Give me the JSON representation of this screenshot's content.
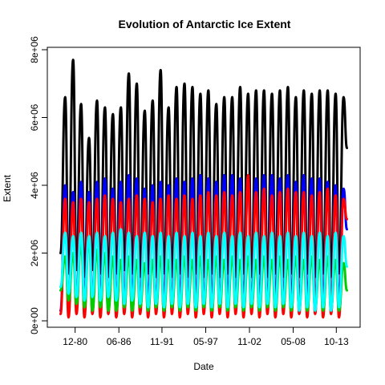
{
  "chart_data": {
    "type": "line",
    "title": "Evolution of Antarctic Ice Extent",
    "xlabel": "Date",
    "ylabel": "Extent",
    "xlim": [
      "1978-11",
      "2015-05"
    ],
    "ylim": [
      0,
      8000000
    ],
    "x_ticks": [
      {
        "date": "1980-12",
        "label": "12-80"
      },
      {
        "date": "1986-06",
        "label": "06-86"
      },
      {
        "date": "1991-11",
        "label": "11-91"
      },
      {
        "date": "1997-05",
        "label": "05-97"
      },
      {
        "date": "2002-11",
        "label": "11-02"
      },
      {
        "date": "2008-05",
        "label": "05-08"
      },
      {
        "date": "2013-10",
        "label": "10-13"
      }
    ],
    "y_ticks": [
      {
        "value": 0,
        "label": "0e+00"
      },
      {
        "value": 2000000,
        "label": "2e+06"
      },
      {
        "value": 4000000,
        "label": "4e+06"
      },
      {
        "value": 6000000,
        "label": "6e+06"
      },
      {
        "value": 8000000,
        "label": "8e+06"
      }
    ],
    "grid": false,
    "series": [
      {
        "color": "#000000",
        "x": [
          "1979-02",
          "1979-09",
          "1980-02",
          "1980-09",
          "1981-02",
          "1981-09",
          "1982-02",
          "1982-09",
          "1983-02",
          "1983-09",
          "1984-02",
          "1984-09",
          "1985-02",
          "1985-09",
          "1986-02",
          "1986-09",
          "1987-02",
          "1987-09",
          "1988-02",
          "1988-09",
          "1989-02",
          "1989-09",
          "1990-02",
          "1990-09",
          "1991-02",
          "1991-09",
          "1992-02",
          "1992-09",
          "1993-02",
          "1993-09",
          "1994-02",
          "1994-09",
          "1995-02",
          "1995-09",
          "1996-02",
          "1996-09",
          "1997-02",
          "1997-09",
          "1998-02",
          "1998-09",
          "1999-02",
          "1999-09",
          "2000-02",
          "2000-09",
          "2001-02",
          "2001-09",
          "2002-02",
          "2002-09",
          "2003-02",
          "2003-09",
          "2004-02",
          "2004-09",
          "2005-02",
          "2005-09",
          "2006-02",
          "2006-09",
          "2007-02",
          "2007-09",
          "2008-02",
          "2008-09",
          "2009-02",
          "2009-09",
          "2010-02",
          "2010-09",
          "2011-02",
          "2011-09",
          "2012-02",
          "2012-09",
          "2013-02",
          "2013-09",
          "2014-02",
          "2014-09",
          "2015-02"
        ],
        "values": [
          2000000,
          6600000,
          1400000,
          7700000,
          1500000,
          6400000,
          1300000,
          5400000,
          1500000,
          6500000,
          1400000,
          6300000,
          1300000,
          6100000,
          1400000,
          6300000,
          1500000,
          7300000,
          1400000,
          7000000,
          1300000,
          6200000,
          1400000,
          6500000,
          1300000,
          7400000,
          1400000,
          6300000,
          1300000,
          6900000,
          1400000,
          7000000,
          1300000,
          6900000,
          1400000,
          6700000,
          1300000,
          6800000,
          1400000,
          6400000,
          1300000,
          6600000,
          1400000,
          6600000,
          1300000,
          6900000,
          1400000,
          6700000,
          1300000,
          6800000,
          1400000,
          6800000,
          1300000,
          6700000,
          1400000,
          6800000,
          1300000,
          6900000,
          1400000,
          6600000,
          1300000,
          6800000,
          1400000,
          6700000,
          1300000,
          6800000,
          1400000,
          6800000,
          1300000,
          6700000,
          1400000,
          6600000,
          5100000
        ]
      },
      {
        "color": "#0000ff",
        "x": [
          "1979-02",
          "1979-09",
          "1980-02",
          "1980-09",
          "1981-02",
          "1981-09",
          "1982-02",
          "1982-09",
          "1983-02",
          "1983-09",
          "1984-02",
          "1984-09",
          "1985-02",
          "1985-09",
          "1986-02",
          "1986-09",
          "1987-02",
          "1987-09",
          "1988-02",
          "1988-09",
          "1989-02",
          "1989-09",
          "1990-02",
          "1990-09",
          "1991-02",
          "1991-09",
          "1992-02",
          "1992-09",
          "1993-02",
          "1993-09",
          "1994-02",
          "1994-09",
          "1995-02",
          "1995-09",
          "1996-02",
          "1996-09",
          "1997-02",
          "1997-09",
          "1998-02",
          "1998-09",
          "1999-02",
          "1999-09",
          "2000-02",
          "2000-09",
          "2001-02",
          "2001-09",
          "2002-02",
          "2002-09",
          "2003-02",
          "2003-09",
          "2004-02",
          "2004-09",
          "2005-02",
          "2005-09",
          "2006-02",
          "2006-09",
          "2007-02",
          "2007-09",
          "2008-02",
          "2008-09",
          "2009-02",
          "2009-09",
          "2010-02",
          "2010-09",
          "2011-02",
          "2011-09",
          "2012-02",
          "2012-09",
          "2013-02",
          "2013-09",
          "2014-02",
          "2014-09",
          "2015-02"
        ],
        "values": [
          300000,
          4000000,
          500000,
          3800000,
          400000,
          4100000,
          500000,
          3800000,
          400000,
          4100000,
          500000,
          4200000,
          400000,
          3900000,
          500000,
          4100000,
          400000,
          4300000,
          500000,
          4200000,
          400000,
          3900000,
          500000,
          4000000,
          400000,
          4100000,
          500000,
          4000000,
          400000,
          4200000,
          500000,
          4100000,
          400000,
          4200000,
          500000,
          4300000,
          400000,
          4200000,
          500000,
          4100000,
          400000,
          4300000,
          500000,
          4300000,
          400000,
          4200000,
          500000,
          4300000,
          400000,
          4200000,
          500000,
          4300000,
          400000,
          4300000,
          500000,
          4200000,
          400000,
          4300000,
          500000,
          4100000,
          400000,
          4300000,
          500000,
          4200000,
          400000,
          4200000,
          500000,
          4100000,
          400000,
          4000000,
          500000,
          3900000,
          2700000
        ]
      },
      {
        "color": "#ff0000",
        "x": [
          "1979-02",
          "1979-09",
          "1980-02",
          "1980-09",
          "1981-02",
          "1981-09",
          "1982-02",
          "1982-09",
          "1983-02",
          "1983-09",
          "1984-02",
          "1984-09",
          "1985-02",
          "1985-09",
          "1986-02",
          "1986-09",
          "1987-02",
          "1987-09",
          "1988-02",
          "1988-09",
          "1989-02",
          "1989-09",
          "1990-02",
          "1990-09",
          "1991-02",
          "1991-09",
          "1992-02",
          "1992-09",
          "1993-02",
          "1993-09",
          "1994-02",
          "1994-09",
          "1995-02",
          "1995-09",
          "1996-02",
          "1996-09",
          "1997-02",
          "1997-09",
          "1998-02",
          "1998-09",
          "1999-02",
          "1999-09",
          "2000-02",
          "2000-09",
          "2001-02",
          "2001-09",
          "2002-02",
          "2002-09",
          "2003-02",
          "2003-09",
          "2004-02",
          "2004-09",
          "2005-02",
          "2005-09",
          "2006-02",
          "2006-09",
          "2007-02",
          "2007-09",
          "2008-02",
          "2008-09",
          "2009-02",
          "2009-09",
          "2010-02",
          "2010-09",
          "2011-02",
          "2011-09",
          "2012-02",
          "2012-09",
          "2013-02",
          "2013-09",
          "2014-02",
          "2014-09",
          "2015-02"
        ],
        "values": [
          200000,
          3600000,
          100000,
          3500000,
          200000,
          3600000,
          100000,
          3500000,
          200000,
          3600000,
          100000,
          3700000,
          200000,
          3600000,
          100000,
          3500000,
          200000,
          3600000,
          100000,
          3700000,
          200000,
          3600000,
          100000,
          3500000,
          200000,
          3600000,
          100000,
          3700000,
          200000,
          3600000,
          100000,
          3700000,
          200000,
          3600000,
          100000,
          3700000,
          200000,
          3800000,
          100000,
          3700000,
          200000,
          3800000,
          100000,
          3700000,
          200000,
          3800000,
          100000,
          4300000,
          200000,
          3800000,
          100000,
          3900000,
          200000,
          3700000,
          100000,
          3800000,
          200000,
          3900000,
          100000,
          3800000,
          200000,
          3800000,
          100000,
          3700000,
          200000,
          3800000,
          100000,
          3900000,
          200000,
          3700000,
          100000,
          3600000,
          3000000
        ]
      },
      {
        "color": "#00cd00",
        "x": [
          "1979-02",
          "1979-09",
          "1980-02",
          "1980-09",
          "1981-02",
          "1981-09",
          "1982-02",
          "1982-09",
          "1983-02",
          "1983-09",
          "1984-02",
          "1984-09",
          "1985-02",
          "1985-09",
          "1986-02",
          "1986-09",
          "1987-02",
          "1987-09",
          "1988-02",
          "1988-09",
          "1989-02",
          "1989-09",
          "1990-02",
          "1990-09",
          "1991-02",
          "1991-09",
          "1992-02",
          "1992-09",
          "1993-02",
          "1993-09",
          "1994-02",
          "1994-09",
          "1995-02",
          "1995-09",
          "1996-02",
          "1996-09",
          "1997-02",
          "1997-09",
          "1998-02",
          "1998-09",
          "1999-02",
          "1999-09",
          "2000-02",
          "2000-09",
          "2001-02",
          "2001-09",
          "2002-02",
          "2002-09",
          "2003-02",
          "2003-09",
          "2004-02",
          "2004-09",
          "2005-02",
          "2005-09",
          "2006-02",
          "2006-09",
          "2007-02",
          "2007-09",
          "2008-02",
          "2008-09",
          "2009-02",
          "2009-09",
          "2010-02",
          "2010-09",
          "2011-02",
          "2011-09",
          "2012-02",
          "2012-09",
          "2013-02",
          "2013-09",
          "2014-02",
          "2014-09",
          "2015-02"
        ],
        "values": [
          900000,
          1900000,
          600000,
          2000000,
          500000,
          2300000,
          400000,
          2400000,
          300000,
          2100000,
          400000,
          2000000,
          300000,
          1900000,
          300000,
          1800000,
          400000,
          1900000,
          300000,
          1800000,
          400000,
          1700000,
          300000,
          1800000,
          400000,
          1900000,
          300000,
          1800000,
          400000,
          1800000,
          300000,
          1900000,
          400000,
          1800000,
          300000,
          1900000,
          400000,
          1800000,
          300000,
          1900000,
          400000,
          1800000,
          300000,
          1900000,
          400000,
          1800000,
          300000,
          1900000,
          400000,
          1800000,
          300000,
          1900000,
          400000,
          1800000,
          300000,
          1900000,
          400000,
          1800000,
          300000,
          1900000,
          400000,
          1800000,
          300000,
          1900000,
          400000,
          1800000,
          300000,
          1900000,
          400000,
          1800000,
          300000,
          1700000,
          900000
        ]
      },
      {
        "color": "#00ffff",
        "x": [
          "1979-02",
          "1979-09",
          "1980-02",
          "1980-09",
          "1981-02",
          "1981-09",
          "1982-02",
          "1982-09",
          "1983-02",
          "1983-09",
          "1984-02",
          "1984-09",
          "1985-02",
          "1985-09",
          "1986-02",
          "1986-09",
          "1987-02",
          "1987-09",
          "1988-02",
          "1988-09",
          "1989-02",
          "1989-09",
          "1990-02",
          "1990-09",
          "1991-02",
          "1991-09",
          "1992-02",
          "1992-09",
          "1993-02",
          "1993-09",
          "1994-02",
          "1994-09",
          "1995-02",
          "1995-09",
          "1996-02",
          "1996-09",
          "1997-02",
          "1997-09",
          "1998-02",
          "1998-09",
          "1999-02",
          "1999-09",
          "2000-02",
          "2000-09",
          "2001-02",
          "2001-09",
          "2002-02",
          "2002-09",
          "2003-02",
          "2003-09",
          "2004-02",
          "2004-09",
          "2005-02",
          "2005-09",
          "2006-02",
          "2006-09",
          "2007-02",
          "2007-09",
          "2008-02",
          "2008-09",
          "2009-02",
          "2009-09",
          "2010-02",
          "2010-09",
          "2011-02",
          "2011-09",
          "2012-02",
          "2012-09",
          "2013-02",
          "2013-09",
          "2014-02",
          "2014-09",
          "2015-02"
        ],
        "values": [
          1000000,
          2600000,
          800000,
          2500000,
          700000,
          2600000,
          600000,
          2500000,
          700000,
          2600000,
          600000,
          2500000,
          700000,
          2600000,
          600000,
          2700000,
          500000,
          2600000,
          600000,
          2500000,
          500000,
          2600000,
          400000,
          2500000,
          500000,
          2600000,
          400000,
          2500000,
          500000,
          2600000,
          400000,
          2500000,
          500000,
          2600000,
          400000,
          2500000,
          500000,
          2600000,
          400000,
          2500000,
          500000,
          2600000,
          400000,
          2500000,
          500000,
          2600000,
          400000,
          2500000,
          500000,
          2600000,
          400000,
          2500000,
          500000,
          2600000,
          400000,
          2500000,
          500000,
          2600000,
          400000,
          2500000,
          300000,
          2600000,
          400000,
          2500000,
          300000,
          2600000,
          400000,
          2500000,
          300000,
          2600000,
          400000,
          2500000,
          1600000
        ]
      }
    ]
  }
}
